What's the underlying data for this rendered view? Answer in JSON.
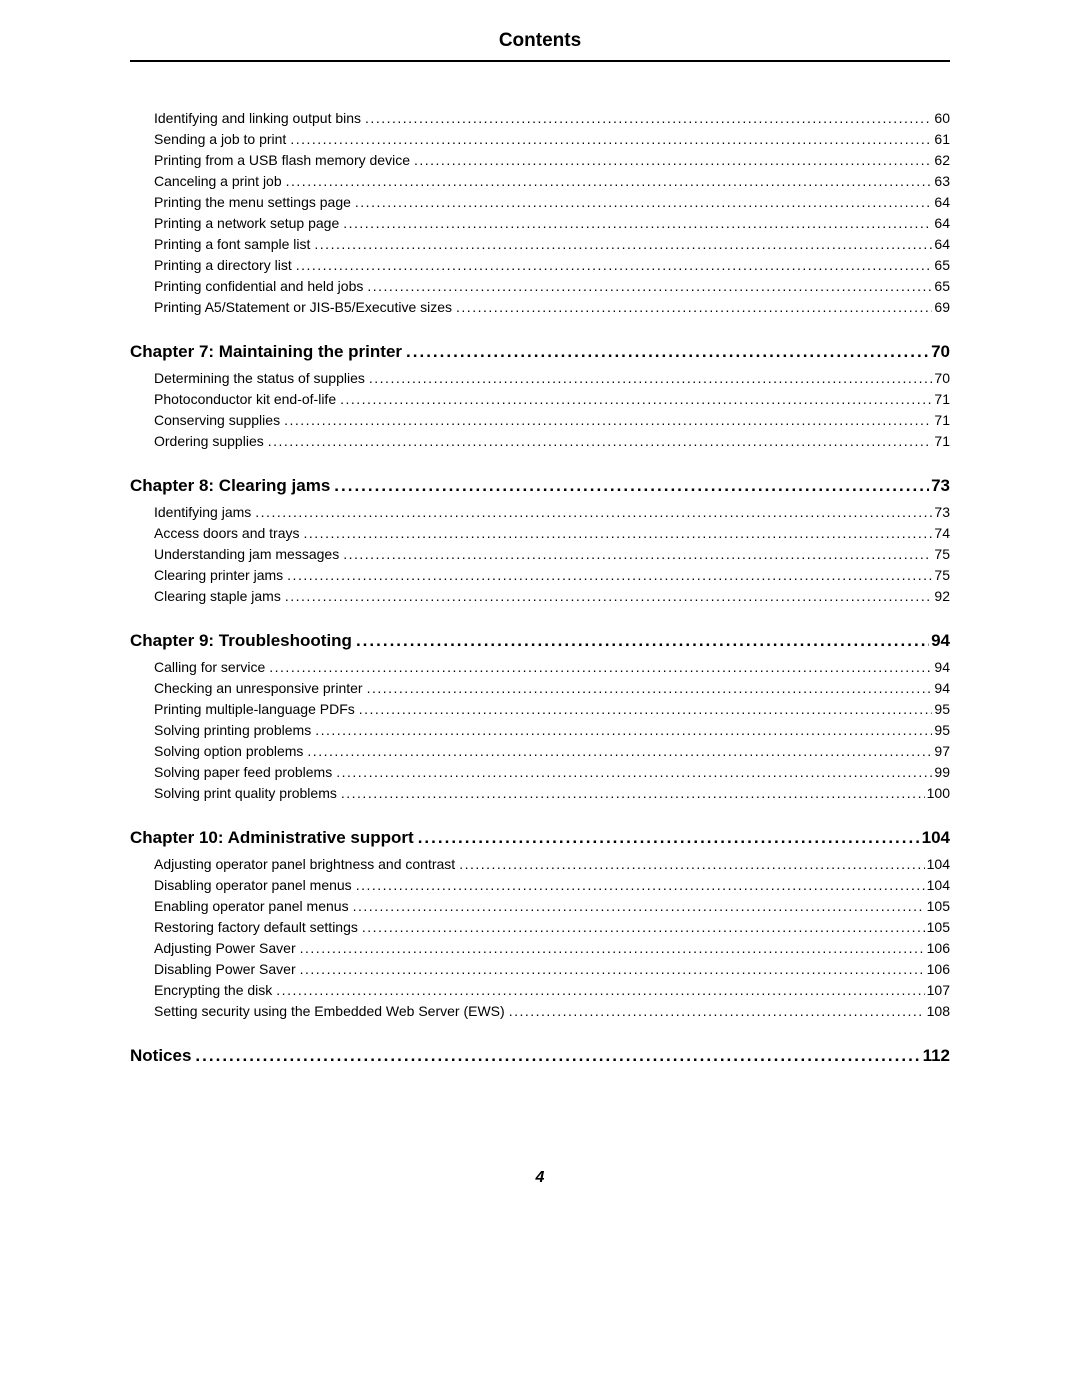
{
  "header": {
    "title": "Contents"
  },
  "entries": [
    {
      "type": "sub",
      "label": "Identifying and linking output bins",
      "page": "60"
    },
    {
      "type": "sub",
      "label": "Sending a job to print",
      "page": "61"
    },
    {
      "type": "sub",
      "label": "Printing from a USB flash memory device",
      "page": "62"
    },
    {
      "type": "sub",
      "label": "Canceling a print job",
      "page": "63"
    },
    {
      "type": "sub",
      "label": "Printing the menu settings page",
      "page": "64"
    },
    {
      "type": "sub",
      "label": "Printing a network setup page",
      "page": "64"
    },
    {
      "type": "sub",
      "label": "Printing a font sample list",
      "page": "64"
    },
    {
      "type": "sub",
      "label": "Printing a directory list",
      "page": "65"
    },
    {
      "type": "sub",
      "label": "Printing confidential and held jobs",
      "page": "65"
    },
    {
      "type": "sub",
      "label": "Printing A5/Statement or JIS-B5/Executive sizes",
      "page": "69"
    },
    {
      "type": "chapter",
      "label": "Chapter 7:  Maintaining the printer",
      "page": "70"
    },
    {
      "type": "sub",
      "label": "Determining the status of supplies",
      "page": "70"
    },
    {
      "type": "sub",
      "label": "Photoconductor kit end-of-life",
      "page": "71"
    },
    {
      "type": "sub",
      "label": "Conserving supplies",
      "page": "71"
    },
    {
      "type": "sub",
      "label": "Ordering supplies",
      "page": "71"
    },
    {
      "type": "chapter",
      "label": "Chapter 8:  Clearing jams",
      "page": "73"
    },
    {
      "type": "sub",
      "label": "Identifying jams",
      "page": "73"
    },
    {
      "type": "sub",
      "label": "Access doors and trays",
      "page": "74"
    },
    {
      "type": "sub",
      "label": "Understanding jam messages",
      "page": "75"
    },
    {
      "type": "sub",
      "label": "Clearing printer jams",
      "page": "75"
    },
    {
      "type": "sub",
      "label": "Clearing staple jams",
      "page": "92"
    },
    {
      "type": "chapter",
      "label": "Chapter 9:  Troubleshooting",
      "page": "94"
    },
    {
      "type": "sub",
      "label": "Calling for service",
      "page": "94"
    },
    {
      "type": "sub",
      "label": "Checking an unresponsive printer",
      "page": "94"
    },
    {
      "type": "sub",
      "label": "Printing multiple-language PDFs",
      "page": "95"
    },
    {
      "type": "sub",
      "label": "Solving printing problems",
      "page": "95"
    },
    {
      "type": "sub",
      "label": "Solving option problems",
      "page": "97"
    },
    {
      "type": "sub",
      "label": "Solving paper feed problems",
      "page": "99"
    },
    {
      "type": "sub",
      "label": "Solving print quality problems",
      "page": "100"
    },
    {
      "type": "chapter",
      "label": "Chapter 10:  Administrative support",
      "page": "104"
    },
    {
      "type": "sub",
      "label": "Adjusting operator panel brightness and contrast",
      "page": "104"
    },
    {
      "type": "sub",
      "label": "Disabling operator panel menus",
      "page": "104"
    },
    {
      "type": "sub",
      "label": "Enabling operator panel menus",
      "page": "105"
    },
    {
      "type": "sub",
      "label": "Restoring factory default settings",
      "page": "105"
    },
    {
      "type": "sub",
      "label": "Adjusting Power Saver",
      "page": "106"
    },
    {
      "type": "sub",
      "label": "Disabling Power Saver",
      "page": "106"
    },
    {
      "type": "sub",
      "label": "Encrypting the disk",
      "page": "107"
    },
    {
      "type": "sub",
      "label": "Setting security using the Embedded Web Server (EWS)",
      "page": "108"
    },
    {
      "type": "chapter",
      "label": "Notices",
      "page": "112"
    }
  ],
  "footer": {
    "page_number": "4"
  },
  "style": {
    "background_color": "#ffffff",
    "text_color": "#000000",
    "rule_color": "#000000",
    "body_font_size": 14,
    "chapter_font_size": 17,
    "header_font_size": 19
  }
}
